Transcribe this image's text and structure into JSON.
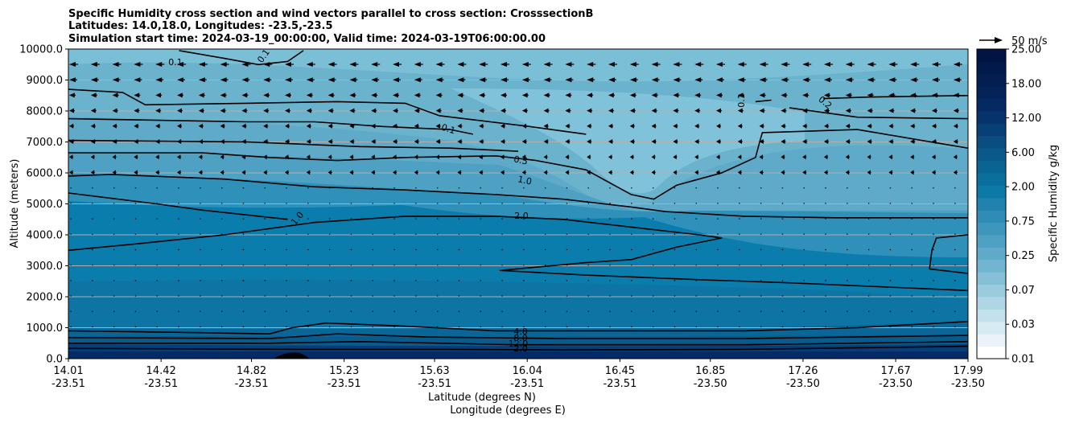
{
  "chart_data": {
    "type": "heatmap",
    "subtype": "filled-contour cross section with wind vectors",
    "title_lines": [
      "Specific Humidity cross section and wind vectors parallel to cross section: CrosssectionB",
      "Latitudes: 14.0,18.0, Longitudes: -23.5,-23.5",
      "Simulation start time: 2024-03-19_00:00:00, Valid time: 2024-03-19T06:00:00.00"
    ],
    "xlabel_lines": [
      "Latitude (degrees N)",
      "Longitude (degrees E)"
    ],
    "ylabel": "Altitude (meters)",
    "y_ticks": [
      "0.0",
      "1000.0",
      "2000.0",
      "3000.0",
      "4000.0",
      "5000.0",
      "6000.0",
      "7000.0",
      "8000.0",
      "9000.0",
      "10000.0"
    ],
    "ylim": [
      0,
      10000
    ],
    "x_ticks": [
      {
        "lat": "14.01",
        "lon": "-23.51"
      },
      {
        "lat": "14.42",
        "lon": "-23.51"
      },
      {
        "lat": "14.82",
        "lon": "-23.51"
      },
      {
        "lat": "15.23",
        "lon": "-23.51"
      },
      {
        "lat": "15.63",
        "lon": "-23.51"
      },
      {
        "lat": "16.04",
        "lon": "-23.51"
      },
      {
        "lat": "16.45",
        "lon": "-23.51"
      },
      {
        "lat": "16.85",
        "lon": "-23.50"
      },
      {
        "lat": "17.26",
        "lon": "-23.50"
      },
      {
        "lat": "17.67",
        "lon": "-23.50"
      },
      {
        "lat": "17.99",
        "lon": "-23.50"
      }
    ],
    "xlim": [
      14.01,
      17.99
    ],
    "grid": "horizontal lines",
    "colorbar": {
      "label": "Specific Humidity g/kg",
      "tick_labels": [
        "0.01",
        "0.03",
        "0.07",
        "0.25",
        "0.75",
        "2.00",
        "6.00",
        "12.00",
        "18.00",
        "25.00"
      ],
      "colormap": "PuBu-like white to dark navy"
    },
    "wind_reference": {
      "label": "50 m/s"
    },
    "wind_direction": "westward (arrows point left), stronger aloft",
    "contour_levels_labeled": [
      "0.1",
      "0.1",
      "0.1",
      "0.1",
      "0.2",
      "0.5",
      "1.0",
      "1.0",
      "2.0",
      "4.0",
      "8.0",
      "12.0",
      "2.0"
    ],
    "contour_lines": [
      {
        "level": "0.1",
        "points": [
          [
            14.5,
            9.95
          ],
          [
            14.7,
            9.7
          ],
          [
            14.85,
            9.5
          ],
          [
            14.98,
            9.6
          ],
          [
            15.05,
            9.95
          ]
        ]
      },
      {
        "level": "0.1",
        "points": [
          [
            14.01,
            8.7
          ],
          [
            14.25,
            8.6
          ],
          [
            14.35,
            8.2
          ],
          [
            14.8,
            8.25
          ],
          [
            15.2,
            8.3
          ],
          [
            15.5,
            8.25
          ],
          [
            15.65,
            7.85
          ],
          [
            16.05,
            7.5
          ],
          [
            16.3,
            7.25
          ]
        ]
      },
      {
        "level": "0.1",
        "points": [
          [
            14.01,
            7.75
          ],
          [
            14.8,
            7.65
          ],
          [
            15.1,
            7.65
          ],
          [
            15.4,
            7.5
          ],
          [
            15.7,
            7.4
          ],
          [
            15.8,
            7.25
          ]
        ]
      },
      {
        "level": "0.1",
        "points": [
          [
            17.05,
            8.3
          ],
          [
            17.12,
            8.35
          ]
        ]
      },
      {
        "level": "0.1",
        "points": [
          [
            17.35,
            8.4
          ],
          [
            17.55,
            8.45
          ],
          [
            17.99,
            8.5
          ]
        ]
      },
      {
        "level": "0.1",
        "points": [
          [
            17.2,
            8.1
          ],
          [
            17.5,
            7.8
          ],
          [
            17.99,
            7.75
          ]
        ]
      },
      {
        "level": "0.1",
        "points": [
          [
            14.01,
            7.05
          ],
          [
            14.8,
            7.0
          ],
          [
            15.3,
            6.85
          ],
          [
            15.7,
            6.8
          ],
          [
            16.0,
            6.7
          ]
        ]
      },
      {
        "level": "0.2",
        "points": [
          [
            14.01,
            6.65
          ],
          [
            14.6,
            6.65
          ],
          [
            14.9,
            6.5
          ],
          [
            15.2,
            6.4
          ],
          [
            15.5,
            6.5
          ],
          [
            15.9,
            6.55
          ],
          [
            16.08,
            6.4
          ],
          [
            16.3,
            6.1
          ],
          [
            16.5,
            5.3
          ],
          [
            16.6,
            5.15
          ],
          [
            16.7,
            5.6
          ],
          [
            16.9,
            6.0
          ],
          [
            17.05,
            6.5
          ],
          [
            17.07,
            7.05
          ],
          [
            17.08,
            7.3
          ],
          [
            17.5,
            7.4
          ],
          [
            17.99,
            6.8
          ]
        ]
      },
      {
        "level": "0.5",
        "points": [
          [
            14.01,
            5.9
          ],
          [
            14.2,
            5.95
          ],
          [
            14.7,
            5.8
          ],
          [
            15.1,
            5.55
          ],
          [
            15.5,
            5.45
          ],
          [
            15.9,
            5.3
          ],
          [
            16.2,
            5.15
          ],
          [
            16.5,
            4.9
          ],
          [
            16.65,
            4.75
          ],
          [
            17.0,
            4.6
          ],
          [
            17.4,
            4.55
          ],
          [
            17.99,
            4.55
          ]
        ]
      },
      {
        "level": "1.0",
        "points": [
          [
            14.01,
            5.35
          ],
          [
            14.4,
            5.0
          ],
          [
            14.6,
            4.8
          ],
          [
            14.98,
            4.5
          ]
        ]
      },
      {
        "level": "1.0",
        "points": [
          [
            14.01,
            3.5
          ],
          [
            14.3,
            3.7
          ],
          [
            14.7,
            4.0
          ],
          [
            15.1,
            4.4
          ],
          [
            15.5,
            4.6
          ],
          [
            15.9,
            4.6
          ],
          [
            16.2,
            4.5
          ],
          [
            16.5,
            4.25
          ],
          [
            16.8,
            4.0
          ],
          [
            16.9,
            3.9
          ],
          [
            16.7,
            3.6
          ],
          [
            16.5,
            3.2
          ],
          [
            16.3,
            3.1
          ],
          [
            15.92,
            2.85
          ],
          [
            16.3,
            2.7
          ],
          [
            16.8,
            2.55
          ],
          [
            17.2,
            2.45
          ],
          [
            17.99,
            2.2
          ]
        ]
      },
      {
        "level": "1.0",
        "points": [
          [
            17.99,
            4.0
          ],
          [
            17.85,
            3.9
          ],
          [
            17.83,
            3.5
          ],
          [
            17.82,
            2.9
          ],
          [
            17.99,
            2.75
          ]
        ]
      },
      {
        "level": "2.0",
        "points": [
          [
            14.01,
            0.9
          ],
          [
            14.5,
            0.85
          ],
          [
            14.9,
            0.8
          ],
          [
            15.0,
            1.0
          ],
          [
            15.15,
            1.15
          ],
          [
            15.5,
            1.05
          ],
          [
            15.9,
            0.9
          ],
          [
            16.5,
            0.9
          ],
          [
            17.0,
            0.9
          ],
          [
            17.5,
            1.0
          ],
          [
            17.99,
            1.2
          ]
        ]
      },
      {
        "level": "4.0",
        "points": [
          [
            14.01,
            0.68
          ],
          [
            14.9,
            0.65
          ],
          [
            15.2,
            0.8
          ],
          [
            15.6,
            0.7
          ],
          [
            16.2,
            0.65
          ],
          [
            17.0,
            0.65
          ],
          [
            17.99,
            0.75
          ]
        ]
      },
      {
        "level": "8.0",
        "points": [
          [
            14.01,
            0.5
          ],
          [
            14.9,
            0.5
          ],
          [
            15.3,
            0.55
          ],
          [
            16.0,
            0.45
          ],
          [
            17.0,
            0.45
          ],
          [
            17.99,
            0.55
          ]
        ]
      },
      {
        "level": "12.0",
        "points": [
          [
            14.01,
            0.33
          ],
          [
            15.0,
            0.3
          ],
          [
            15.7,
            0.3
          ],
          [
            16.2,
            0.28
          ],
          [
            17.0,
            0.3
          ],
          [
            17.99,
            0.4
          ]
        ]
      }
    ]
  }
}
